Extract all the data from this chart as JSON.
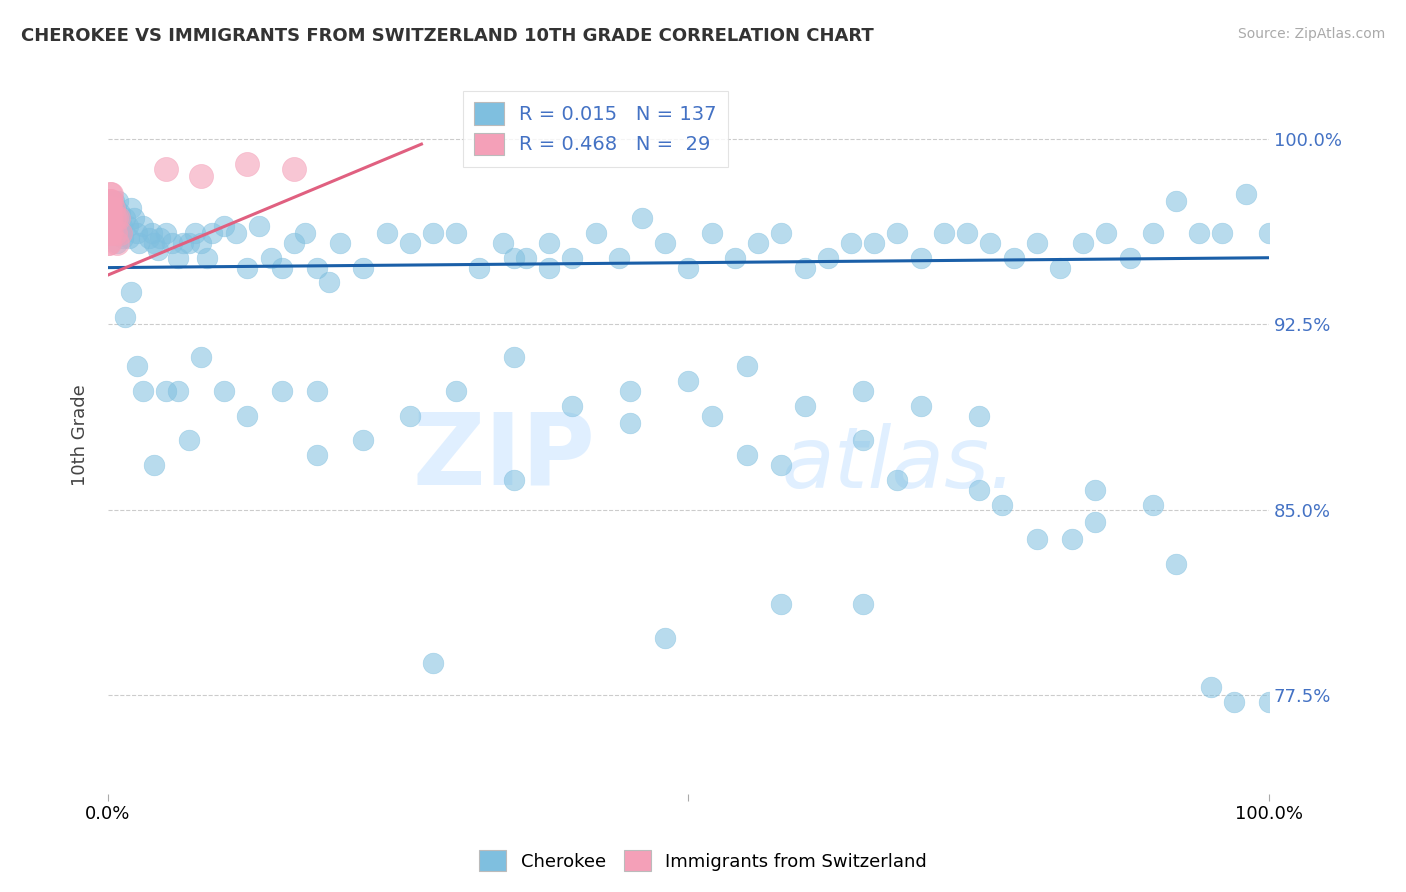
{
  "title": "CHEROKEE VS IMMIGRANTS FROM SWITZERLAND 10TH GRADE CORRELATION CHART",
  "source": "Source: ZipAtlas.com",
  "ylabel": "10th Grade",
  "yright_labels": [
    "77.5%",
    "85.0%",
    "92.5%",
    "100.0%"
  ],
  "yright_ticks": [
    0.775,
    0.85,
    0.925,
    1.0
  ],
  "xlim": [
    0.0,
    1.0
  ],
  "ylim": [
    0.735,
    1.025
  ],
  "legend_blue_r": "0.015",
  "legend_blue_n": "137",
  "legend_pink_r": "0.468",
  "legend_pink_n": " 29",
  "blue_color": "#7fbfdf",
  "pink_color": "#f4a0b8",
  "blue_line_color": "#1a5fa8",
  "pink_line_color": "#e06080",
  "watermark_zip": "ZIP",
  "watermark_atlas": "atlas.",
  "blue_trend_x": [
    0.0,
    1.0
  ],
  "blue_trend_y": [
    0.948,
    0.952
  ],
  "pink_trend_x": [
    0.0,
    0.27
  ],
  "pink_trend_y": [
    0.945,
    0.998
  ],
  "blue_scatter_x": [
    0.005,
    0.007,
    0.008,
    0.009,
    0.01,
    0.012,
    0.013,
    0.015,
    0.017,
    0.018,
    0.02,
    0.022,
    0.025,
    0.027,
    0.03,
    0.035,
    0.038,
    0.04,
    0.043,
    0.045,
    0.05,
    0.055,
    0.06,
    0.065,
    0.07,
    0.075,
    0.08,
    0.085,
    0.09,
    0.1,
    0.11,
    0.12,
    0.13,
    0.14,
    0.15,
    0.16,
    0.17,
    0.18,
    0.19,
    0.2,
    0.22,
    0.24,
    0.26,
    0.28,
    0.3,
    0.32,
    0.34,
    0.36,
    0.38,
    0.4,
    0.42,
    0.44,
    0.46,
    0.48,
    0.5,
    0.52,
    0.54,
    0.56,
    0.58,
    0.6,
    0.62,
    0.64,
    0.66,
    0.68,
    0.7,
    0.72,
    0.74,
    0.76,
    0.78,
    0.8,
    0.82,
    0.84,
    0.86,
    0.88,
    0.9,
    0.92,
    0.94,
    0.96,
    0.98,
    1.0,
    0.001,
    0.002,
    0.003,
    0.004,
    0.006,
    0.008,
    0.01,
    0.015,
    0.02,
    0.025,
    0.03,
    0.04,
    0.05,
    0.06,
    0.07,
    0.08,
    0.1,
    0.12,
    0.15,
    0.18,
    0.22,
    0.26,
    0.3,
    0.35,
    0.4,
    0.45,
    0.5,
    0.55,
    0.6,
    0.65,
    0.7,
    0.75,
    0.8,
    0.85,
    0.9,
    0.95,
    1.0,
    0.18,
    0.35,
    0.52,
    0.38,
    0.28,
    0.58,
    0.68,
    0.77,
    0.83,
    0.65,
    0.48,
    0.58,
    0.45,
    0.35,
    0.55,
    0.65,
    0.75,
    0.85,
    0.92,
    0.97
  ],
  "blue_scatter_y": [
    0.975,
    0.972,
    0.968,
    0.975,
    0.97,
    0.965,
    0.96,
    0.968,
    0.965,
    0.96,
    0.972,
    0.968,
    0.962,
    0.958,
    0.965,
    0.96,
    0.962,
    0.958,
    0.955,
    0.96,
    0.962,
    0.958,
    0.952,
    0.958,
    0.958,
    0.962,
    0.958,
    0.952,
    0.962,
    0.965,
    0.962,
    0.948,
    0.965,
    0.952,
    0.948,
    0.958,
    0.962,
    0.948,
    0.942,
    0.958,
    0.948,
    0.962,
    0.958,
    0.962,
    0.962,
    0.948,
    0.958,
    0.952,
    0.958,
    0.952,
    0.962,
    0.952,
    0.968,
    0.958,
    0.948,
    0.962,
    0.952,
    0.958,
    0.962,
    0.948,
    0.952,
    0.958,
    0.958,
    0.962,
    0.952,
    0.962,
    0.962,
    0.958,
    0.952,
    0.958,
    0.948,
    0.958,
    0.962,
    0.952,
    0.962,
    0.975,
    0.962,
    0.962,
    0.978,
    0.962,
    0.972,
    0.968,
    0.975,
    0.965,
    0.968,
    0.958,
    0.962,
    0.928,
    0.938,
    0.908,
    0.898,
    0.868,
    0.898,
    0.898,
    0.878,
    0.912,
    0.898,
    0.888,
    0.898,
    0.872,
    0.878,
    0.888,
    0.898,
    0.912,
    0.892,
    0.898,
    0.902,
    0.908,
    0.892,
    0.898,
    0.892,
    0.888,
    0.838,
    0.858,
    0.852,
    0.778,
    0.772,
    0.898,
    0.862,
    0.888,
    0.948,
    0.788,
    0.868,
    0.862,
    0.852,
    0.838,
    0.812,
    0.798,
    0.812,
    0.885,
    0.952,
    0.872,
    0.878,
    0.858,
    0.845,
    0.828,
    0.772
  ],
  "pink_scatter_x": [
    0.0,
    0.0,
    0.0,
    0.001,
    0.001,
    0.001,
    0.001,
    0.001,
    0.001,
    0.002,
    0.002,
    0.002,
    0.002,
    0.002,
    0.003,
    0.003,
    0.003,
    0.003,
    0.004,
    0.005,
    0.006,
    0.007,
    0.008,
    0.009,
    0.01,
    0.05,
    0.08,
    0.12,
    0.16
  ],
  "pink_scatter_y": [
    0.97,
    0.965,
    0.958,
    0.975,
    0.97,
    0.968,
    0.962,
    0.958,
    0.972,
    0.978,
    0.972,
    0.968,
    0.962,
    0.975,
    0.968,
    0.975,
    0.962,
    0.978,
    0.972,
    0.968,
    0.962,
    0.968,
    0.958,
    0.968,
    0.962,
    0.988,
    0.985,
    0.99,
    0.988
  ]
}
